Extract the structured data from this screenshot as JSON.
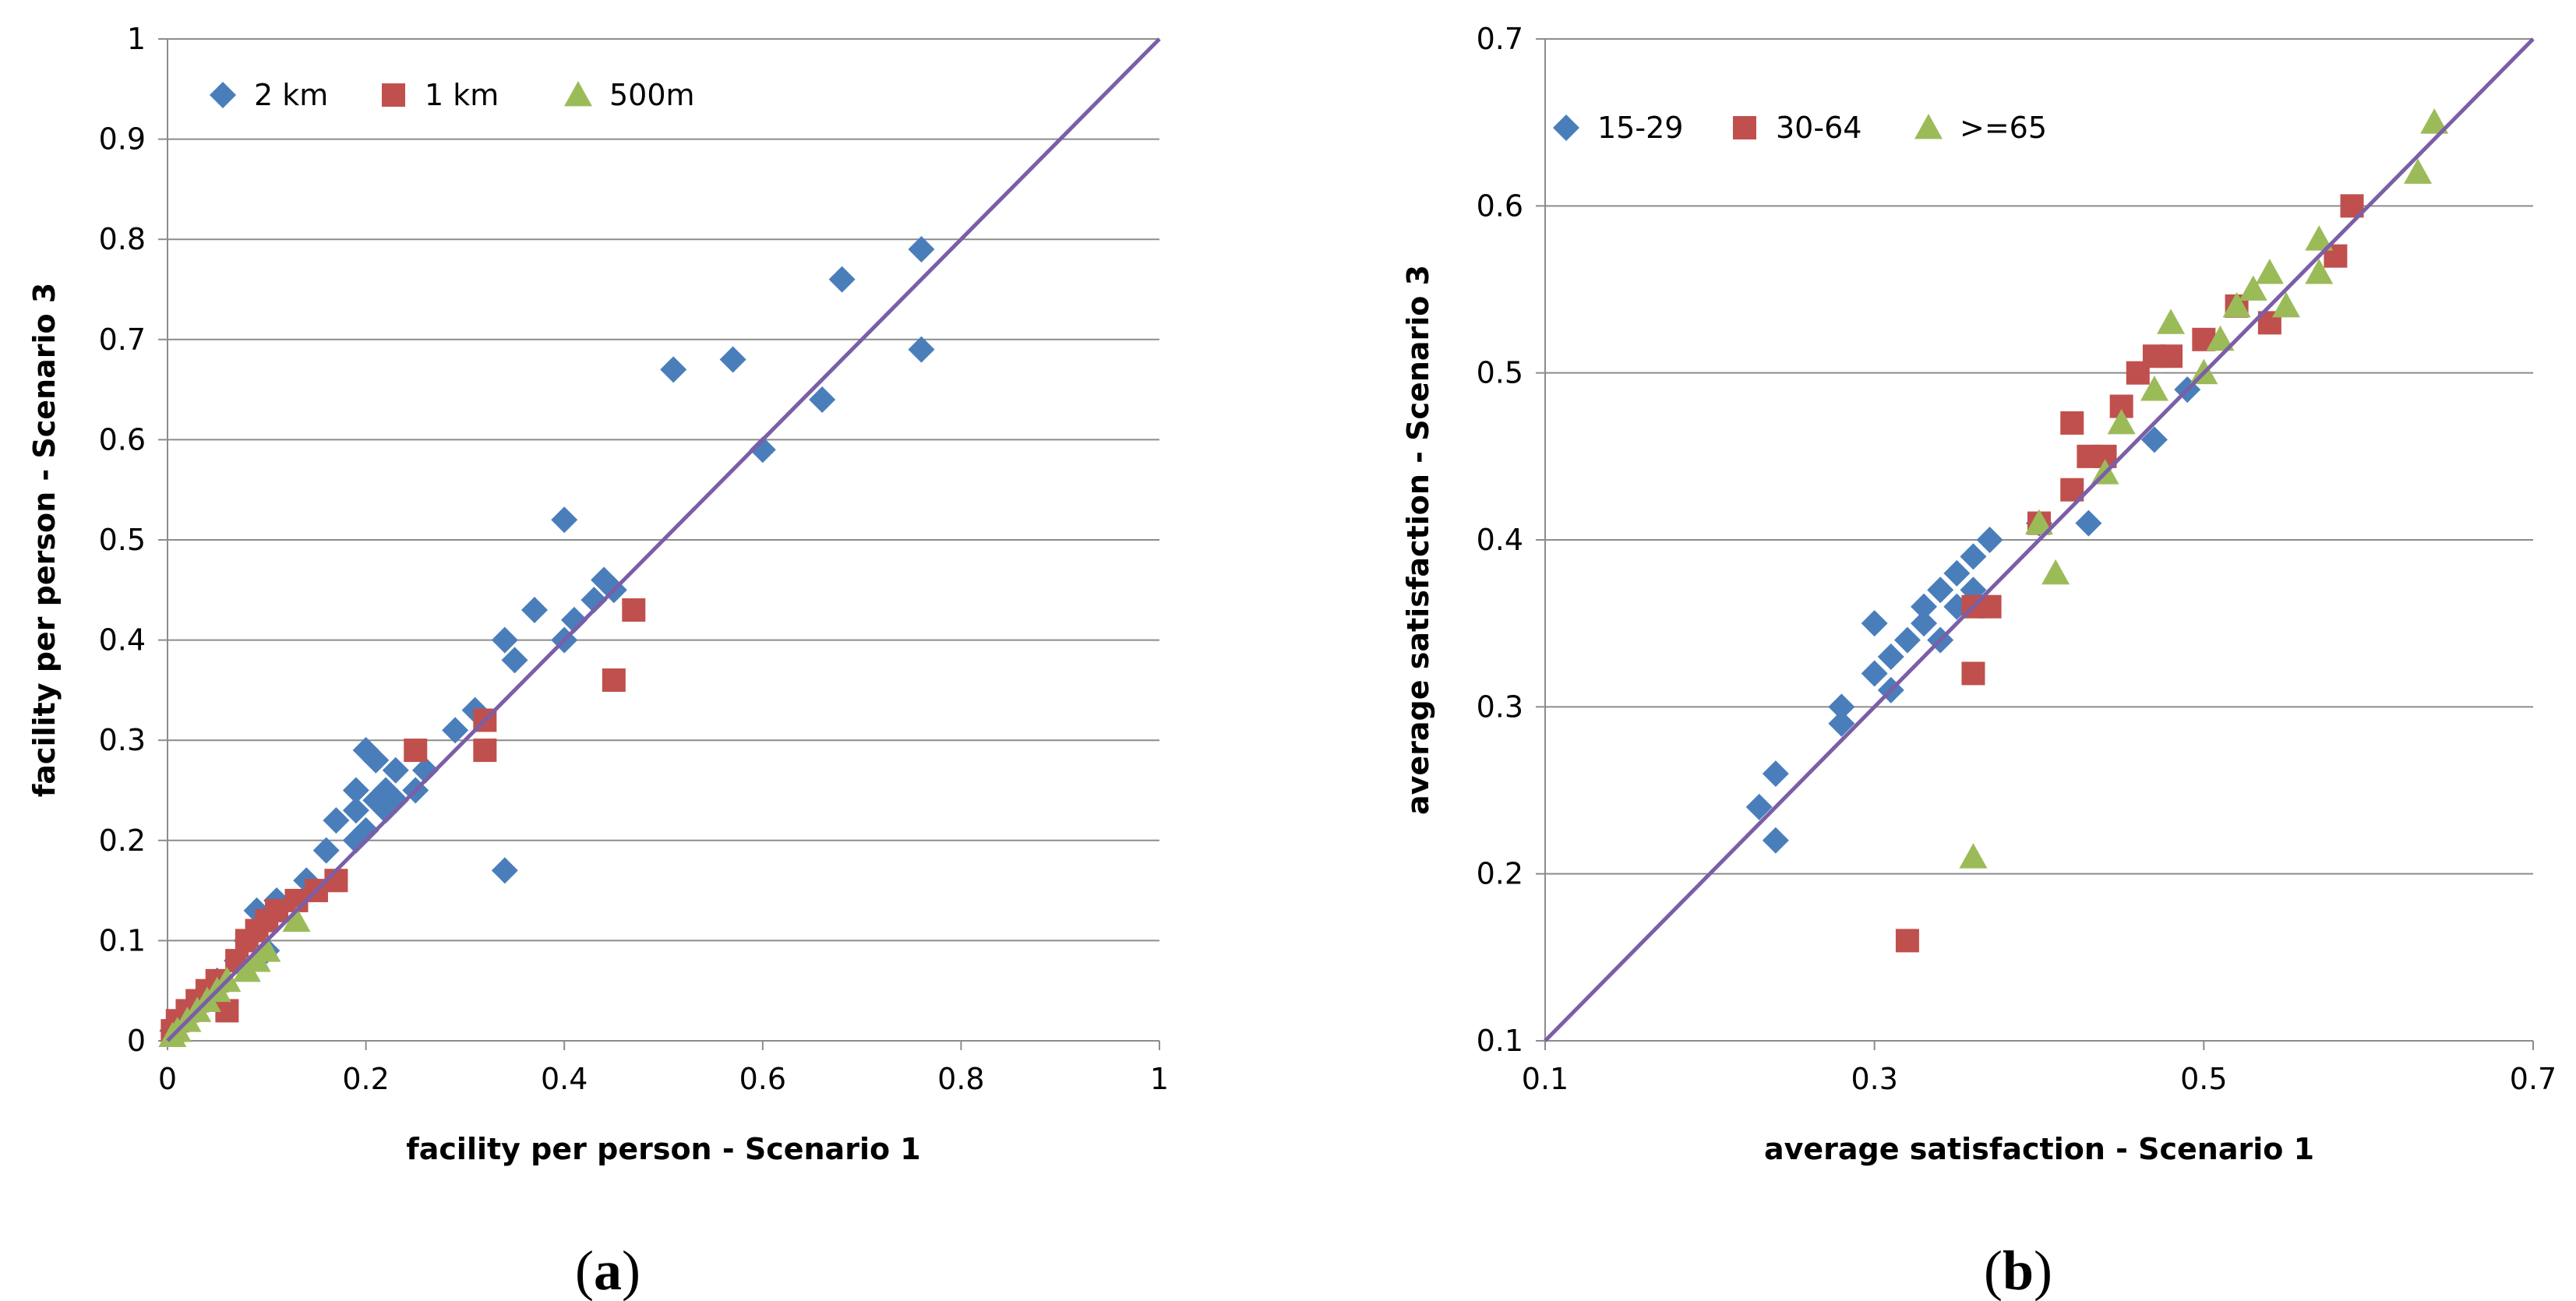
{
  "chart_data": [
    {
      "type": "scatter",
      "panel_label": "a",
      "title": "",
      "xlabel": "facility per person - Scenario 1",
      "ylabel": "facility per person - Scenario 3",
      "xlim": [
        0,
        1
      ],
      "ylim": [
        0,
        1
      ],
      "xticks": [
        "0",
        "0.2",
        "0.4",
        "0.6",
        "0.8",
        "1"
      ],
      "yticks": [
        "0",
        "0.1",
        "0.2",
        "0.3",
        "0.4",
        "0.5",
        "0.6",
        "0.7",
        "0.8",
        "0.9",
        "1"
      ],
      "grid": "horizontal",
      "legend_position": "top-left",
      "reference_line": {
        "x": [
          0,
          1
        ],
        "y": [
          0,
          1
        ],
        "color": "#7b5ea7"
      },
      "series": [
        {
          "name": "2 km",
          "marker": "diamond",
          "color": "#4a7ebb",
          "points": [
            [
              0.76,
              0.79
            ],
            [
              0.68,
              0.76
            ],
            [
              0.76,
              0.69
            ],
            [
              0.51,
              0.67
            ],
            [
              0.57,
              0.68
            ],
            [
              0.66,
              0.64
            ],
            [
              0.6,
              0.59
            ],
            [
              0.4,
              0.52
            ],
            [
              0.44,
              0.46
            ],
            [
              0.45,
              0.45
            ],
            [
              0.43,
              0.44
            ],
            [
              0.37,
              0.43
            ],
            [
              0.41,
              0.42
            ],
            [
              0.34,
              0.4
            ],
            [
              0.4,
              0.4
            ],
            [
              0.35,
              0.38
            ],
            [
              0.31,
              0.33
            ],
            [
              0.29,
              0.31
            ],
            [
              0.2,
              0.29
            ],
            [
              0.21,
              0.28
            ],
            [
              0.23,
              0.27
            ],
            [
              0.22,
              0.25
            ],
            [
              0.26,
              0.27
            ],
            [
              0.25,
              0.25
            ],
            [
              0.19,
              0.25
            ],
            [
              0.21,
              0.24
            ],
            [
              0.23,
              0.24
            ],
            [
              0.22,
              0.23
            ],
            [
              0.19,
              0.23
            ],
            [
              0.17,
              0.22
            ],
            [
              0.2,
              0.21
            ],
            [
              0.19,
              0.2
            ],
            [
              0.16,
              0.19
            ],
            [
              0.34,
              0.17
            ],
            [
              0.14,
              0.16
            ],
            [
              0.11,
              0.14
            ],
            [
              0.09,
              0.13
            ],
            [
              0.1,
              0.12
            ],
            [
              0.08,
              0.1
            ],
            [
              0.1,
              0.09
            ],
            [
              0.07,
              0.08
            ],
            [
              0.05,
              0.06
            ],
            [
              0.04,
              0.05
            ],
            [
              0.03,
              0.04
            ],
            [
              0.02,
              0.03
            ],
            [
              0.01,
              0.02
            ],
            [
              0.005,
              0.01
            ]
          ]
        },
        {
          "name": "1 km",
          "marker": "square",
          "color": "#c0504d",
          "points": [
            [
              0.47,
              0.43
            ],
            [
              0.45,
              0.36
            ],
            [
              0.32,
              0.32
            ],
            [
              0.32,
              0.29
            ],
            [
              0.25,
              0.29
            ],
            [
              0.17,
              0.16
            ],
            [
              0.15,
              0.15
            ],
            [
              0.13,
              0.14
            ],
            [
              0.11,
              0.13
            ],
            [
              0.1,
              0.12
            ],
            [
              0.09,
              0.11
            ],
            [
              0.08,
              0.1
            ],
            [
              0.07,
              0.08
            ],
            [
              0.05,
              0.06
            ],
            [
              0.04,
              0.05
            ],
            [
              0.06,
              0.03
            ],
            [
              0.03,
              0.04
            ],
            [
              0.02,
              0.03
            ],
            [
              0.01,
              0.02
            ],
            [
              0.005,
              0.01
            ]
          ]
        },
        {
          "name": "500m",
          "marker": "triangle",
          "color": "#9bbb59",
          "points": [
            [
              0.13,
              0.12
            ],
            [
              0.1,
              0.09
            ],
            [
              0.09,
              0.08
            ],
            [
              0.08,
              0.07
            ],
            [
              0.06,
              0.06
            ],
            [
              0.05,
              0.05
            ],
            [
              0.04,
              0.04
            ],
            [
              0.03,
              0.03
            ],
            [
              0.02,
              0.02
            ],
            [
              0.01,
              0.01
            ],
            [
              0.005,
              0.005
            ]
          ]
        }
      ]
    },
    {
      "type": "scatter",
      "panel_label": "b",
      "title": "",
      "xlabel": "average satisfaction - Scenario 1",
      "ylabel": "average satisfaction - Scenario 3",
      "xlim": [
        0.1,
        0.7
      ],
      "ylim": [
        0.1,
        0.7
      ],
      "xticks": [
        "0.1",
        "0.3",
        "0.5",
        "0.7"
      ],
      "yticks": [
        "0.1",
        "0.2",
        "0.3",
        "0.4",
        "0.5",
        "0.6",
        "0.7"
      ],
      "grid": "horizontal",
      "legend_position": "top-left",
      "reference_line": {
        "x": [
          0.1,
          0.7
        ],
        "y": [
          0.1,
          0.7
        ],
        "color": "#7b5ea7"
      },
      "series": [
        {
          "name": "15-29",
          "marker": "diamond",
          "color": "#4a7ebb",
          "points": [
            [
              0.23,
              0.24
            ],
            [
              0.24,
              0.26
            ],
            [
              0.24,
              0.22
            ],
            [
              0.28,
              0.3
            ],
            [
              0.28,
              0.29
            ],
            [
              0.3,
              0.32
            ],
            [
              0.31,
              0.31
            ],
            [
              0.31,
              0.33
            ],
            [
              0.3,
              0.35
            ],
            [
              0.32,
              0.34
            ],
            [
              0.33,
              0.35
            ],
            [
              0.33,
              0.36
            ],
            [
              0.34,
              0.37
            ],
            [
              0.35,
              0.38
            ],
            [
              0.36,
              0.39
            ],
            [
              0.37,
              0.4
            ],
            [
              0.35,
              0.36
            ],
            [
              0.34,
              0.34
            ],
            [
              0.36,
              0.37
            ],
            [
              0.4,
              0.41
            ],
            [
              0.43,
              0.41
            ],
            [
              0.47,
              0.46
            ],
            [
              0.49,
              0.49
            ]
          ]
        },
        {
          "name": "30-64",
          "marker": "square",
          "color": "#c0504d",
          "points": [
            [
              0.32,
              0.16
            ],
            [
              0.36,
              0.32
            ],
            [
              0.36,
              0.36
            ],
            [
              0.37,
              0.36
            ],
            [
              0.4,
              0.41
            ],
            [
              0.42,
              0.43
            ],
            [
              0.42,
              0.47
            ],
            [
              0.43,
              0.45
            ],
            [
              0.44,
              0.45
            ],
            [
              0.45,
              0.48
            ],
            [
              0.46,
              0.5
            ],
            [
              0.47,
              0.51
            ],
            [
              0.48,
              0.51
            ],
            [
              0.5,
              0.52
            ],
            [
              0.52,
              0.54
            ],
            [
              0.54,
              0.53
            ],
            [
              0.58,
              0.57
            ],
            [
              0.59,
              0.6
            ]
          ]
        },
        {
          "name": ">=65",
          "marker": "triangle",
          "color": "#9bbb59",
          "points": [
            [
              0.36,
              0.21
            ],
            [
              0.41,
              0.38
            ],
            [
              0.4,
              0.41
            ],
            [
              0.44,
              0.44
            ],
            [
              0.45,
              0.47
            ],
            [
              0.47,
              0.49
            ],
            [
              0.48,
              0.53
            ],
            [
              0.5,
              0.5
            ],
            [
              0.51,
              0.52
            ],
            [
              0.52,
              0.54
            ],
            [
              0.53,
              0.55
            ],
            [
              0.54,
              0.56
            ],
            [
              0.55,
              0.54
            ],
            [
              0.57,
              0.56
            ],
            [
              0.57,
              0.58
            ],
            [
              0.63,
              0.62
            ],
            [
              0.64,
              0.65
            ]
          ]
        }
      ]
    }
  ]
}
